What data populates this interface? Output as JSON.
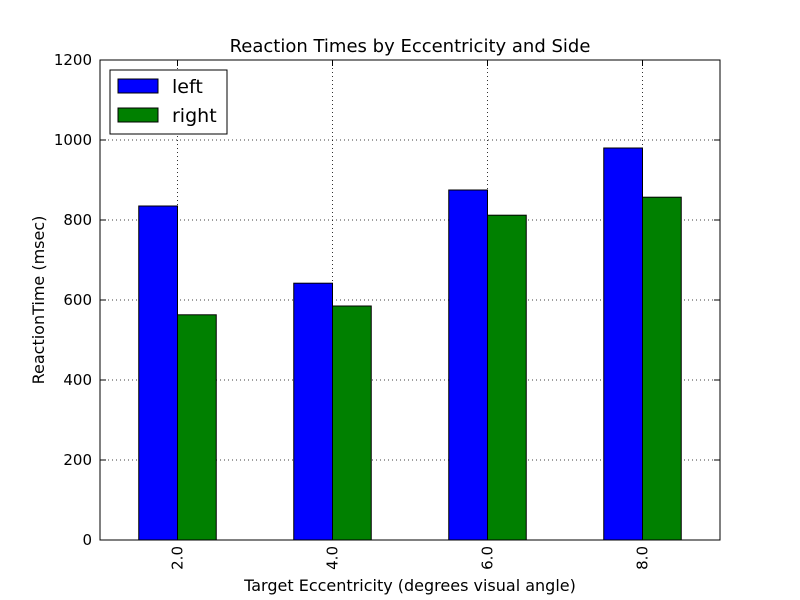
{
  "chart_data": {
    "type": "bar",
    "title": "Reaction Times by Eccentricity and Side",
    "xlabel": "Target Eccentricity (degrees visual angle)",
    "ylabel": "ReactionTime (msec)",
    "categories": [
      "2.0",
      "4.0",
      "6.0",
      "8.0"
    ],
    "series": [
      {
        "name": "left",
        "color": "#0000ff",
        "values": [
          835,
          642,
          875,
          980
        ]
      },
      {
        "name": "right",
        "color": "#008000",
        "values": [
          563,
          585,
          812,
          857
        ]
      }
    ],
    "ylim": [
      0,
      1200
    ],
    "yticks": [
      0,
      200,
      400,
      600,
      800,
      1000,
      1200
    ],
    "grid": true,
    "legend_position": "top-left"
  }
}
